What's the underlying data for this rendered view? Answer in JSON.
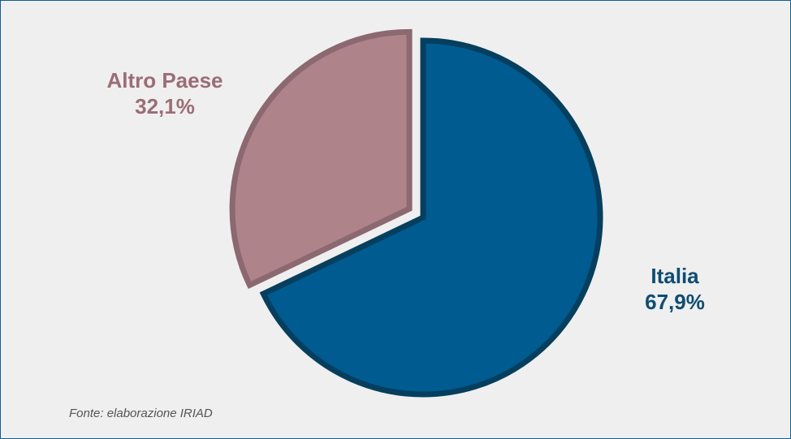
{
  "chart_data": {
    "type": "pie",
    "slices": [
      {
        "label": "Italia",
        "value": 67.9,
        "value_label": "67,9%",
        "fill": "#005b91",
        "stroke": "#063f5e",
        "text_color": "#0f4c73"
      },
      {
        "label": "Altro Paese",
        "value": 32.1,
        "value_label": "32,1%",
        "fill": "#ae848a",
        "stroke": "#8c6870",
        "text_color": "#9b6d75"
      }
    ],
    "exploded": [
      "Altro Paese"
    ]
  },
  "source": "Fonte: elaborazione IRIAD",
  "colors": {
    "background": "#efefef",
    "frame_border": "#0a5f93"
  }
}
